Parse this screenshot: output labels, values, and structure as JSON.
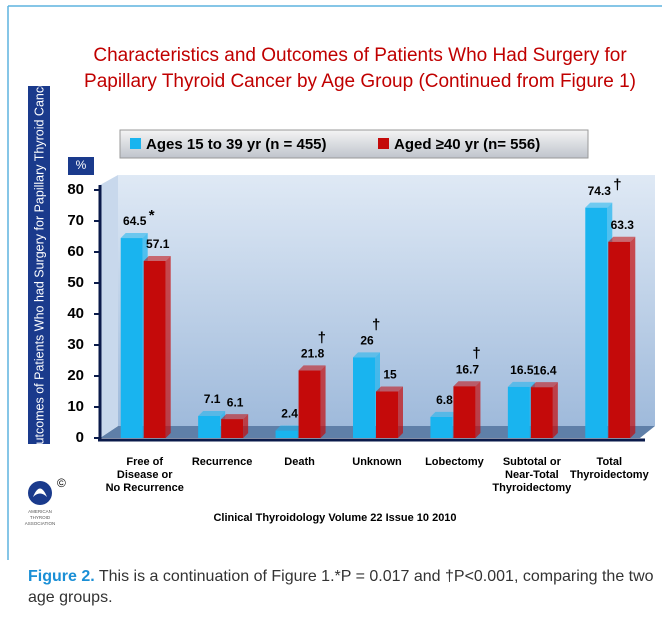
{
  "chart_data": {
    "type": "bar",
    "title": [
      "Characteristics and Outcomes of Patients Who Had Surgery for",
      "Papillary Thyroid Cancer by Age Group   (Continued from Figure 1)"
    ],
    "ylabel": "Outcomes of Patients Who had Surgery for Papillary Thyroid Cancer",
    "yunit": "%",
    "categories": [
      [
        "Free of",
        "Disease or",
        "No Recurrence"
      ],
      [
        "Recurrence"
      ],
      [
        "Death"
      ],
      [
        "Unknown"
      ],
      [
        "Lobectomy"
      ],
      [
        "Subtotal or",
        "Near-Total",
        "Thyroidectomy"
      ],
      [
        "Total",
        "Thyroidectomy"
      ]
    ],
    "series": [
      {
        "name": "Ages 15 to 39 yr (n = 455)",
        "color": "#19b4ef",
        "values": [
          64.5,
          7.1,
          2.4,
          26,
          6.8,
          16.5,
          74.3
        ],
        "markers": [
          "*",
          null,
          null,
          "†",
          null,
          null,
          "†"
        ]
      },
      {
        "name": "Aged ≥40 yr (n= 556)",
        "color": "#c40a0a",
        "values": [
          57.1,
          6.1,
          21.8,
          15,
          16.7,
          16.4,
          63.3
        ],
        "markers": [
          null,
          null,
          "†",
          null,
          "†",
          null,
          null
        ]
      }
    ],
    "ylim": [
      0,
      80
    ],
    "yticks": [
      0,
      10,
      20,
      30,
      40,
      50,
      60,
      70,
      80
    ],
    "source": "Clinical Thyroidology Volume 22 Issue 10 2010",
    "logo": {
      "symbol": "©",
      "text": [
        "AMERICAN",
        "THYROID",
        "ASSOCIATION"
      ]
    }
  },
  "caption": {
    "label": "Figure 2.",
    "text": " This is a continuation of Figure 1.*P = 0.017 and †P<0.001, comparing the two age groups."
  }
}
